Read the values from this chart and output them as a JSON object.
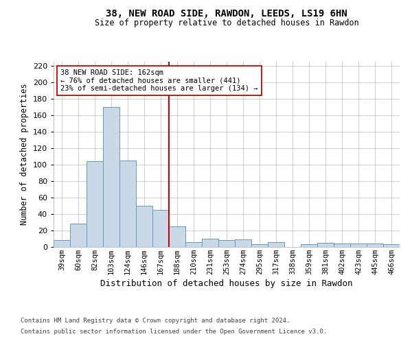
{
  "title": "38, NEW ROAD SIDE, RAWDON, LEEDS, LS19 6HN",
  "subtitle": "Size of property relative to detached houses in Rawdon",
  "xlabel": "Distribution of detached houses by size in Rawdon",
  "ylabel": "Number of detached properties",
  "categories": [
    "39sqm",
    "60sqm",
    "82sqm",
    "103sqm",
    "124sqm",
    "146sqm",
    "167sqm",
    "188sqm",
    "210sqm",
    "231sqm",
    "253sqm",
    "274sqm",
    "295sqm",
    "317sqm",
    "338sqm",
    "359sqm",
    "381sqm",
    "402sqm",
    "423sqm",
    "445sqm",
    "466sqm"
  ],
  "values": [
    8,
    28,
    104,
    170,
    105,
    50,
    45,
    25,
    6,
    10,
    8,
    9,
    3,
    6,
    0,
    3,
    5,
    4,
    4,
    4,
    3
  ],
  "bar_color": "#c9d9e8",
  "bar_edge_color": "#6699bb",
  "vline_x": 6.5,
  "vline_color": "#cc0000",
  "annotation_text": "38 NEW ROAD SIDE: 162sqm\n← 76% of detached houses are smaller (441)\n23% of semi-detached houses are larger (134) →",
  "annotation_box_color": "#ffffff",
  "annotation_box_edge_color": "#cc0000",
  "ylim": [
    0,
    225
  ],
  "yticks": [
    0,
    20,
    40,
    60,
    80,
    100,
    120,
    140,
    160,
    180,
    200,
    220
  ],
  "background_color": "#ffffff",
  "grid_color": "#c8c8c8",
  "footer_line1": "Contains HM Land Registry data © Crown copyright and database right 2024.",
  "footer_line2": "Contains public sector information licensed under the Open Government Licence v3.0."
}
